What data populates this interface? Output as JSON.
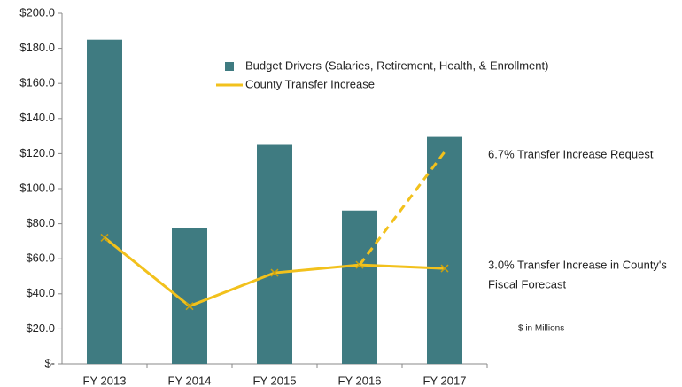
{
  "chart_data": {
    "type": "bar",
    "categories": [
      "FY 2013",
      "FY 2014",
      "FY 2015",
      "FY 2016",
      "FY 2017"
    ],
    "series": [
      {
        "name": "Budget Drivers (Salaries, Retirement, Health, & Enrollment)",
        "type": "bar",
        "color": "#3f7b81",
        "values": [
          185,
          77.5,
          125,
          87.5,
          129.5
        ]
      },
      {
        "name": "County Transfer Increase",
        "type": "line",
        "color": "#f2c11c",
        "values": [
          72,
          33,
          52,
          56.5,
          54.5
        ]
      },
      {
        "type": "line",
        "dashed": true,
        "color": "#f2c11c",
        "values": [
          null,
          null,
          null,
          56.5,
          121
        ]
      }
    ],
    "ylim": [
      0,
      200
    ],
    "yticks": [
      {
        "value": 0,
        "label": "$-"
      },
      {
        "value": 20,
        "label": "$20.0"
      },
      {
        "value": 40,
        "label": "$40.0"
      },
      {
        "value": 60,
        "label": "$60.0"
      },
      {
        "value": 80,
        "label": "$80.0"
      },
      {
        "value": 100,
        "label": "$100.0"
      },
      {
        "value": 120,
        "label": "$120.0"
      },
      {
        "value": 140,
        "label": "$140.0"
      },
      {
        "value": 160,
        "label": "$160.0"
      },
      {
        "value": 180,
        "label": "$180.0"
      },
      {
        "value": 200,
        "label": "$200.0"
      }
    ],
    "annotations": [
      {
        "lines": [
          "6.7% Transfer Increase Request"
        ]
      },
      {
        "lines": [
          "3.0% Transfer Increase in County's",
          "Fiscal Forecast"
        ]
      },
      {
        "lines": [
          "$ in Millions"
        ]
      }
    ],
    "grid": false
  }
}
